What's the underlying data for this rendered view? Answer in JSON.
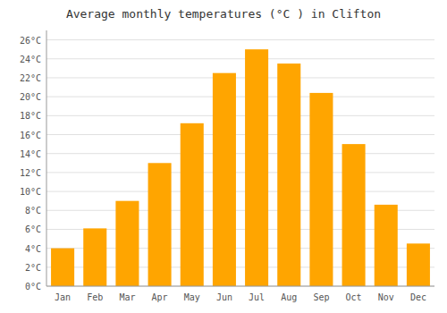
{
  "chart_data": {
    "type": "bar",
    "title": "Average monthly temperatures (°C ) in Clifton",
    "categories": [
      "Jan",
      "Feb",
      "Mar",
      "Apr",
      "May",
      "Jun",
      "Jul",
      "Aug",
      "Sep",
      "Oct",
      "Nov",
      "Dec"
    ],
    "values": [
      4.0,
      6.1,
      9.0,
      13.0,
      17.2,
      22.5,
      25.0,
      23.5,
      20.4,
      15.0,
      8.6,
      4.5
    ],
    "color": "#FFA500",
    "ylim": [
      0,
      27
    ],
    "yticks": [
      {
        "value": 0,
        "label": "0°C"
      },
      {
        "value": 2,
        "label": "2°C"
      },
      {
        "value": 4,
        "label": "4°C"
      },
      {
        "value": 6,
        "label": "6°C"
      },
      {
        "value": 8,
        "label": "8°C"
      },
      {
        "value": 10,
        "label": "10°C"
      },
      {
        "value": 12,
        "label": "12°C"
      },
      {
        "value": 14,
        "label": "14°C"
      },
      {
        "value": 16,
        "label": "16°C"
      },
      {
        "value": 18,
        "label": "18°C"
      },
      {
        "value": 20,
        "label": "20°C"
      },
      {
        "value": 22,
        "label": "22°C"
      },
      {
        "value": 24,
        "label": "24°C"
      },
      {
        "value": 26,
        "label": "26°C"
      }
    ],
    "grid": true
  }
}
